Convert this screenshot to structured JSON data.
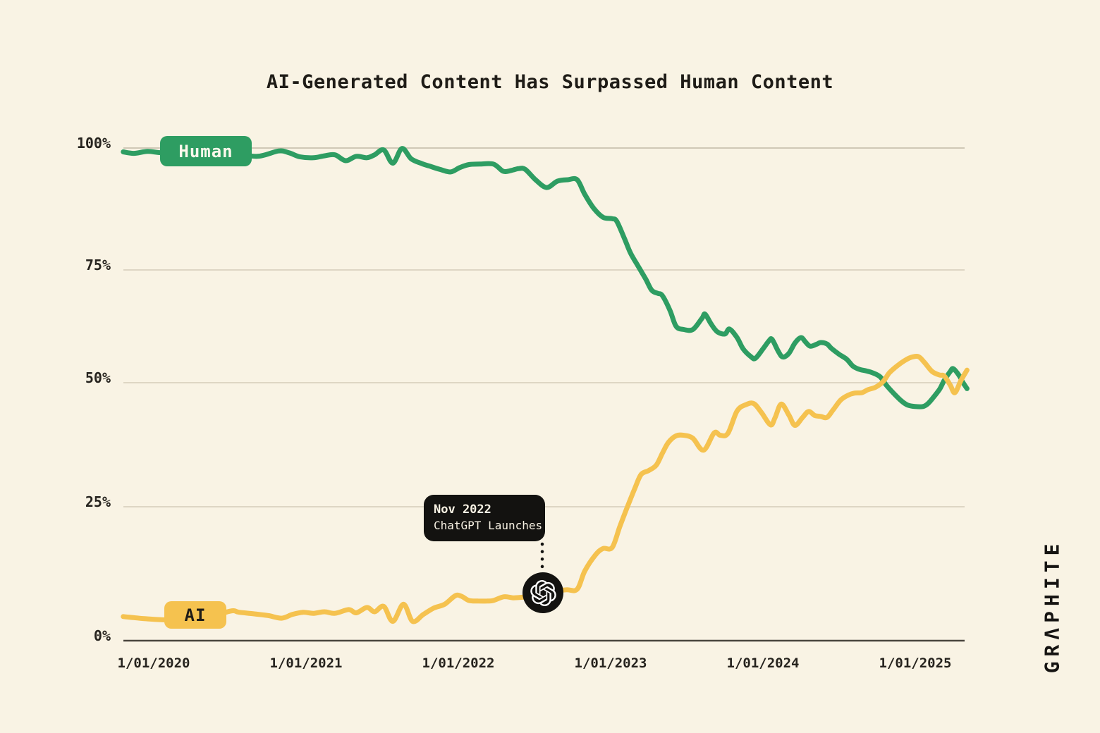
{
  "title": "AI-Generated Content Has Surpassed Human Content",
  "brand": "GRΛPHITE",
  "colors": {
    "background": "#f9f3e4",
    "ink": "#1f1c17",
    "human_green": "#2e9d62",
    "ai_yellow": "#f5c24f",
    "gridline": "#d6cdba",
    "top_gridline": "#c2b9a7",
    "axis": "#4a453e",
    "callout_bg": "#131210",
    "callout_text": "#f7f1e3"
  },
  "chart_data": {
    "type": "line",
    "title": "AI-Generated Content Has Surpassed Human Content",
    "xlabel": "",
    "ylabel": "",
    "grid": true,
    "xlim": [
      2019.8,
      2025.38
    ],
    "ylim": [
      0,
      100
    ],
    "legend": {
      "style": "inline-badges-on-lines",
      "position": "left-on-series"
    },
    "x_axis": {
      "ticks": [
        {
          "label": "1/01/2020",
          "year": 2020
        },
        {
          "label": "1/01/2021",
          "year": 2021
        },
        {
          "label": "1/01/2022",
          "year": 2022
        },
        {
          "label": "1/01/2023",
          "year": 2023
        },
        {
          "label": "1/01/2024",
          "year": 2024
        },
        {
          "label": "1/01/2025",
          "year": 2025
        }
      ]
    },
    "y_axis": {
      "ticks": [
        {
          "label": "100%",
          "value": 100
        },
        {
          "label": "75%",
          "value": 75
        },
        {
          "label": "50%",
          "value": 50
        },
        {
          "label": "25%",
          "value": 25
        },
        {
          "label": "0%",
          "value": 0
        }
      ]
    },
    "annotation": {
      "label": [
        "Nov 2022",
        "ChatGPT Launches"
      ],
      "marker": "openai-logo",
      "marker_x": 2022.56,
      "marker_y": 8.8
    },
    "series": [
      {
        "name": "Human",
        "color": "#2e9d62",
        "points": [
          [
            2019.8,
            99.2
          ],
          [
            2019.87,
            98.9
          ],
          [
            2019.96,
            99.3
          ],
          [
            2020.06,
            99.0
          ],
          [
            2020.29,
            98.8
          ],
          [
            2020.5,
            98.9
          ],
          [
            2020.68,
            98.3
          ],
          [
            2020.82,
            99.4
          ],
          [
            2020.89,
            99.0
          ],
          [
            2020.96,
            98.2
          ],
          [
            2021.05,
            98.0
          ],
          [
            2021.12,
            98.4
          ],
          [
            2021.19,
            98.6
          ],
          [
            2021.26,
            97.4
          ],
          [
            2021.33,
            98.3
          ],
          [
            2021.4,
            98.0
          ],
          [
            2021.45,
            98.6
          ],
          [
            2021.51,
            99.6
          ],
          [
            2021.57,
            96.9
          ],
          [
            2021.63,
            99.9
          ],
          [
            2021.69,
            97.8
          ],
          [
            2021.76,
            96.8
          ],
          [
            2021.81,
            96.3
          ],
          [
            2021.88,
            95.6
          ],
          [
            2021.95,
            95.1
          ],
          [
            2022.01,
            96.0
          ],
          [
            2022.07,
            96.6
          ],
          [
            2022.14,
            96.7
          ],
          [
            2022.23,
            96.7
          ],
          [
            2022.29,
            95.3
          ],
          [
            2022.32,
            95.2
          ],
          [
            2022.36,
            95.5
          ],
          [
            2022.4,
            95.8
          ],
          [
            2022.44,
            95.6
          ],
          [
            2022.51,
            93.4
          ],
          [
            2022.58,
            91.9
          ],
          [
            2022.65,
            93.2
          ],
          [
            2022.72,
            93.5
          ],
          [
            2022.78,
            93.5
          ],
          [
            2022.83,
            90.5
          ],
          [
            2022.89,
            87.6
          ],
          [
            2022.95,
            85.8
          ],
          [
            2023.01,
            85.5
          ],
          [
            2023.04,
            85.0
          ],
          [
            2023.09,
            81.5
          ],
          [
            2023.13,
            78.5
          ],
          [
            2023.18,
            75.8
          ],
          [
            2023.23,
            73.0
          ],
          [
            2023.27,
            70.5
          ],
          [
            2023.31,
            69.8
          ],
          [
            2023.34,
            69.3
          ],
          [
            2023.39,
            66.0
          ],
          [
            2023.43,
            62.5
          ],
          [
            2023.48,
            61.8
          ],
          [
            2023.54,
            61.8
          ],
          [
            2023.6,
            64.3
          ],
          [
            2023.62,
            65.2
          ],
          [
            2023.66,
            63.0
          ],
          [
            2023.7,
            61.3
          ],
          [
            2023.75,
            60.8
          ],
          [
            2023.78,
            61.9
          ],
          [
            2023.83,
            60.0
          ],
          [
            2023.87,
            57.5
          ],
          [
            2023.92,
            55.8
          ],
          [
            2023.95,
            55.4
          ],
          [
            2024.0,
            57.5
          ],
          [
            2024.04,
            59.3
          ],
          [
            2024.06,
            59.6
          ],
          [
            2024.1,
            57.0
          ],
          [
            2024.13,
            55.7
          ],
          [
            2024.17,
            56.5
          ],
          [
            2024.21,
            58.8
          ],
          [
            2024.25,
            60.0
          ],
          [
            2024.28,
            59.0
          ],
          [
            2024.31,
            58.1
          ],
          [
            2024.35,
            58.5
          ],
          [
            2024.38,
            58.9
          ],
          [
            2024.42,
            58.6
          ],
          [
            2024.45,
            57.6
          ],
          [
            2024.5,
            56.3
          ],
          [
            2024.55,
            55.2
          ],
          [
            2024.59,
            53.7
          ],
          [
            2024.63,
            53.0
          ],
          [
            2024.68,
            52.6
          ],
          [
            2024.72,
            52.2
          ],
          [
            2024.77,
            51.3
          ],
          [
            2024.81,
            49.5
          ],
          [
            2024.86,
            47.8
          ],
          [
            2024.91,
            46.3
          ],
          [
            2024.95,
            45.5
          ],
          [
            2025.0,
            45.2
          ],
          [
            2025.05,
            45.2
          ],
          [
            2025.08,
            45.7
          ],
          [
            2025.11,
            46.7
          ],
          [
            2025.16,
            48.7
          ],
          [
            2025.19,
            50.5
          ],
          [
            2025.23,
            52.5
          ],
          [
            2025.25,
            53.1
          ],
          [
            2025.29,
            51.5
          ],
          [
            2025.31,
            50.2
          ],
          [
            2025.34,
            48.8
          ]
        ]
      },
      {
        "name": "AI",
        "color": "#f5c24f",
        "points": [
          [
            2019.8,
            4.5
          ],
          [
            2019.87,
            4.3
          ],
          [
            2019.94,
            4.1
          ],
          [
            2020.06,
            3.9
          ],
          [
            2020.29,
            3.8
          ],
          [
            2020.5,
            5.5
          ],
          [
            2020.56,
            5.3
          ],
          [
            2020.66,
            5.0
          ],
          [
            2020.75,
            4.7
          ],
          [
            2020.84,
            4.2
          ],
          [
            2020.91,
            4.9
          ],
          [
            2020.98,
            5.3
          ],
          [
            2021.05,
            5.1
          ],
          [
            2021.12,
            5.4
          ],
          [
            2021.19,
            5.1
          ],
          [
            2021.28,
            5.8
          ],
          [
            2021.33,
            5.2
          ],
          [
            2021.4,
            6.2
          ],
          [
            2021.45,
            5.4
          ],
          [
            2021.51,
            6.4
          ],
          [
            2021.57,
            3.6
          ],
          [
            2021.64,
            6.8
          ],
          [
            2021.7,
            3.6
          ],
          [
            2021.77,
            4.9
          ],
          [
            2021.84,
            6.1
          ],
          [
            2021.91,
            6.8
          ],
          [
            2021.98,
            8.4
          ],
          [
            2022.02,
            8.3
          ],
          [
            2022.07,
            7.5
          ],
          [
            2022.13,
            7.4
          ],
          [
            2022.19,
            7.4
          ],
          [
            2022.23,
            7.5
          ],
          [
            2022.3,
            8.2
          ],
          [
            2022.36,
            8.0
          ],
          [
            2022.42,
            8.1
          ],
          [
            2022.49,
            8.3
          ],
          [
            2022.56,
            8.8
          ],
          [
            2022.62,
            9.2
          ],
          [
            2022.71,
            9.5
          ],
          [
            2022.78,
            9.6
          ],
          [
            2022.83,
            13.0
          ],
          [
            2022.9,
            16.0
          ],
          [
            2022.95,
            17.2
          ],
          [
            2023.01,
            17.4
          ],
          [
            2023.06,
            21.3
          ],
          [
            2023.11,
            25.0
          ],
          [
            2023.16,
            28.8
          ],
          [
            2023.2,
            31.5
          ],
          [
            2023.25,
            32.3
          ],
          [
            2023.3,
            33.4
          ],
          [
            2023.34,
            35.8
          ],
          [
            2023.38,
            38.0
          ],
          [
            2023.43,
            39.3
          ],
          [
            2023.48,
            39.4
          ],
          [
            2023.54,
            38.8
          ],
          [
            2023.61,
            36.4
          ],
          [
            2023.68,
            39.9
          ],
          [
            2023.72,
            39.4
          ],
          [
            2023.77,
            39.8
          ],
          [
            2023.83,
            44.3
          ],
          [
            2023.89,
            45.6
          ],
          [
            2023.94,
            45.8
          ],
          [
            2023.99,
            44.0
          ],
          [
            2024.05,
            41.5
          ],
          [
            2024.08,
            43.0
          ],
          [
            2024.12,
            45.7
          ],
          [
            2024.17,
            43.5
          ],
          [
            2024.21,
            41.4
          ],
          [
            2024.26,
            43.0
          ],
          [
            2024.3,
            44.2
          ],
          [
            2024.34,
            43.4
          ],
          [
            2024.38,
            43.2
          ],
          [
            2024.42,
            43.0
          ],
          [
            2024.46,
            44.5
          ],
          [
            2024.51,
            46.5
          ],
          [
            2024.56,
            47.5
          ],
          [
            2024.6,
            47.9
          ],
          [
            2024.65,
            48.0
          ],
          [
            2024.69,
            48.6
          ],
          [
            2024.74,
            49.1
          ],
          [
            2024.79,
            50.3
          ],
          [
            2024.83,
            52.2
          ],
          [
            2024.88,
            53.7
          ],
          [
            2024.93,
            54.9
          ],
          [
            2024.97,
            55.6
          ],
          [
            2025.02,
            55.8
          ],
          [
            2025.06,
            54.5
          ],
          [
            2025.11,
            52.5
          ],
          [
            2025.16,
            51.7
          ],
          [
            2025.19,
            51.5
          ],
          [
            2025.23,
            49.5
          ],
          [
            2025.26,
            48.0
          ],
          [
            2025.3,
            50.5
          ],
          [
            2025.34,
            52.8
          ]
        ]
      }
    ]
  }
}
